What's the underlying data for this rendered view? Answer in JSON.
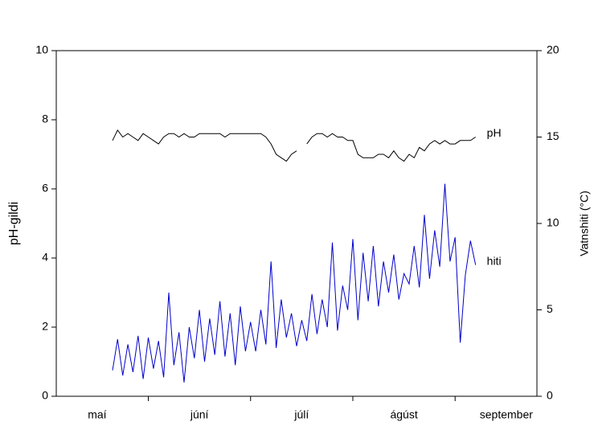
{
  "chart_data": {
    "type": "line",
    "y_label": "pH-gildi",
    "y2_label": "Vatnshiti (°C)",
    "categories": [
      "maí",
      "júní",
      "júlí",
      "ágúst",
      "september"
    ],
    "xlim": [
      0.1,
      4.8
    ],
    "xticks": [
      1,
      2,
      3,
      4
    ],
    "x": [
      0.65,
      0.7,
      0.75,
      0.8,
      0.85,
      0.9,
      0.95,
      1.0,
      1.05,
      1.1,
      1.15,
      1.2,
      1.25,
      1.3,
      1.35,
      1.4,
      1.45,
      1.5,
      1.55,
      1.6,
      1.65,
      1.7,
      1.75,
      1.8,
      1.85,
      1.9,
      1.95,
      2.0,
      2.05,
      2.1,
      2.15,
      2.2,
      2.25,
      2.3,
      2.35,
      2.4,
      2.45,
      2.5,
      2.55,
      2.6,
      2.65,
      2.7,
      2.75,
      2.8,
      2.85,
      2.9,
      2.95,
      3.0,
      3.05,
      3.1,
      3.15,
      3.2,
      3.25,
      3.3,
      3.35,
      3.4,
      3.45,
      3.5,
      3.55,
      3.6,
      3.65,
      3.7,
      3.75,
      3.8,
      3.85,
      3.9,
      3.95,
      4.0,
      4.05,
      4.1,
      4.15,
      4.2
    ],
    "ylim": [
      0,
      10
    ],
    "yticks": [
      0,
      2,
      4,
      6,
      8,
      10
    ],
    "y2lim": [
      0,
      20
    ],
    "y2ticks": [
      0,
      5,
      10,
      15,
      20
    ],
    "series": [
      {
        "name": "pH",
        "color": "#000000",
        "values": [
          7.4,
          7.7,
          7.5,
          7.6,
          7.5,
          7.4,
          7.6,
          7.5,
          7.4,
          7.3,
          7.5,
          7.6,
          7.6,
          7.5,
          7.6,
          7.5,
          7.5,
          7.6,
          7.6,
          7.6,
          7.6,
          7.6,
          7.5,
          7.6,
          7.6,
          7.6,
          7.6,
          7.6,
          7.6,
          7.6,
          7.5,
          7.3,
          7.0,
          6.9,
          6.8,
          7.0,
          7.1,
          null,
          7.3,
          7.5,
          7.6,
          7.6,
          7.5,
          7.6,
          7.5,
          7.5,
          7.4,
          7.4,
          7.0,
          6.9,
          6.9,
          6.9,
          7.0,
          7.0,
          6.9,
          7.1,
          6.9,
          6.8,
          7.0,
          6.9,
          7.2,
          7.1,
          7.3,
          7.4,
          7.3,
          7.4,
          7.3,
          7.3,
          7.4,
          7.4,
          7.4,
          7.5
        ]
      },
      {
        "name": "hiti",
        "color": "#0000cc",
        "axis": "y2",
        "values": [
          1.5,
          3.3,
          1.2,
          3.0,
          1.4,
          3.5,
          1.0,
          3.4,
          1.6,
          3.2,
          1.1,
          6.0,
          1.8,
          3.7,
          0.8,
          4.0,
          2.2,
          5.0,
          2.0,
          4.5,
          2.4,
          5.5,
          2.3,
          4.8,
          1.8,
          5.2,
          2.6,
          4.3,
          2.6,
          5.0,
          3.0,
          7.8,
          2.8,
          5.6,
          3.4,
          4.8,
          2.9,
          4.4,
          3.2,
          5.9,
          3.6,
          5.6,
          4.0,
          8.9,
          3.8,
          6.4,
          5.0,
          9.1,
          4.4,
          8.3,
          5.5,
          8.7,
          5.2,
          7.8,
          6.0,
          8.2,
          5.6,
          7.1,
          6.5,
          8.7,
          6.3,
          10.5,
          6.8,
          9.6,
          7.5,
          12.3,
          7.8,
          9.2,
          3.1,
          7.0,
          9.0,
          7.6
        ]
      }
    ]
  }
}
